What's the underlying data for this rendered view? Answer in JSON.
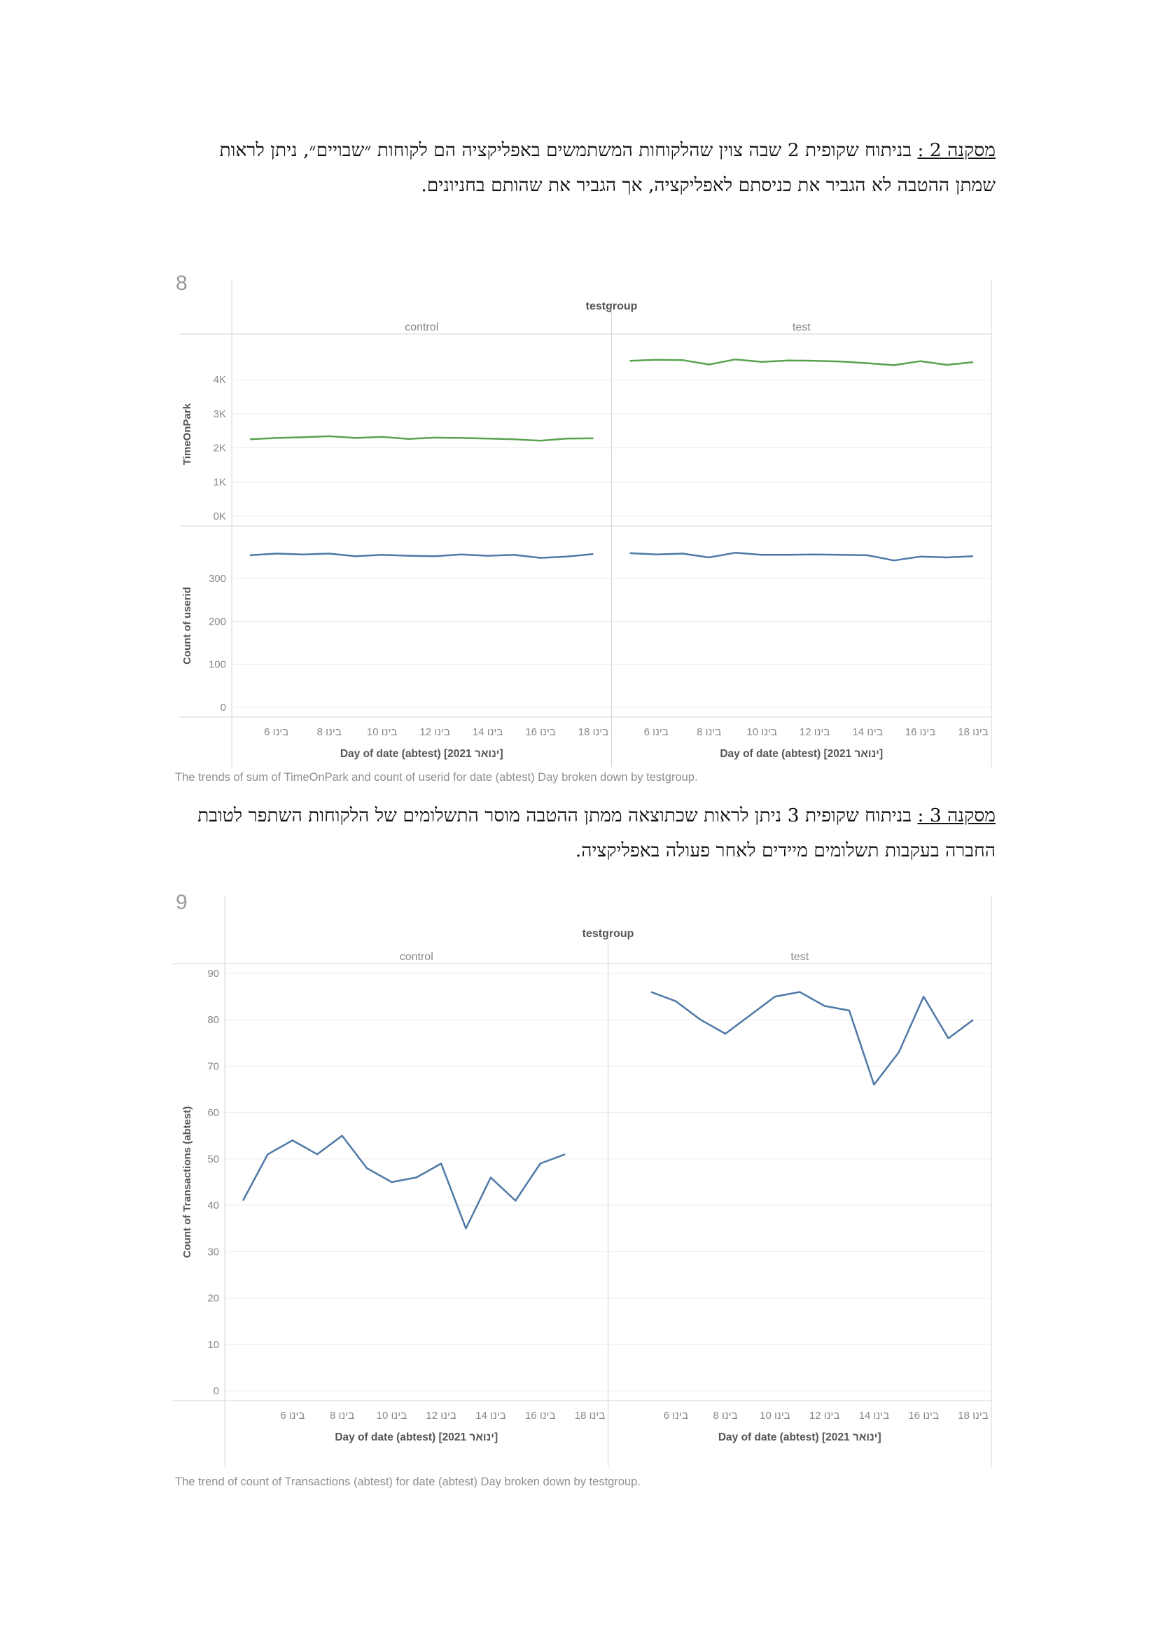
{
  "paragraphs": [
    {
      "label": "מסקנה 2 :",
      "text": " בניתוח שקופית 2 שבה צוין שהלקוחות המשתמשים באפליקציה הם לקוחות ״שבויים״, ניתן לראות שמתן ההטבה לא הגביר את כניסתם לאפליקציה, אך הגביר את שהותם בחניונים."
    },
    {
      "label": "מסקנה 3 :",
      "text": " בניתוח שקופית 3 ניתן לראות שכתוצאה ממתן ההטבה מוסר התשלומים של הלקוחות השתפר לטובת החברה בעקבות תשלומים מיידים לאחר פעולה באפליקציה."
    }
  ],
  "figures": [
    {
      "number": "8",
      "caption": "The trends of sum of TimeOnPark and count of userid for date (abtest) Day broken down by testgroup.",
      "header": "testgroup",
      "xlabel": "Day of date (abtest) [ינואר 2021]"
    },
    {
      "number": "9",
      "caption": "The trend of count of Transactions (abtest) for date (abtest) Day broken down by testgroup.",
      "header": "testgroup",
      "xlabel": "Day of date (abtest) [ינואר 2021]"
    }
  ],
  "chart_data": [
    {
      "type": "line",
      "title": "",
      "column_header": "testgroup",
      "panels": [
        "control",
        "test"
      ],
      "x": [
        5,
        6,
        7,
        8,
        9,
        10,
        11,
        12,
        13,
        14,
        15,
        16,
        17,
        18
      ],
      "x_tick_values": [
        6,
        8,
        10,
        12,
        14,
        16,
        18
      ],
      "x_tick_labels": [
        "6 בינו",
        "8 בינו",
        "10 בינו",
        "12 בינו",
        "14 בינו",
        "16 בינו",
        "18 בינו"
      ],
      "xlabel": "Day of date (abtest) [ינואר 2021]",
      "rows": [
        {
          "ylabel": "TimeOnPark",
          "ylim": [
            0,
            4800
          ],
          "yticks": [
            0,
            1000,
            2000,
            3000,
            4000
          ],
          "ytick_labels": [
            "0K",
            "1K",
            "2K",
            "3K",
            "4K"
          ],
          "color": "#59a14f",
          "series": [
            {
              "panel": "control",
              "values": [
                2250,
                2290,
                2310,
                2340,
                2290,
                2320,
                2260,
                2300,
                2290,
                2270,
                2250,
                2210,
                2270,
                2280
              ]
            },
            {
              "panel": "test",
              "values": [
                4550,
                4580,
                4570,
                4440,
                4590,
                4520,
                4560,
                4550,
                4530,
                4480,
                4420,
                4540,
                4430,
                4510
              ]
            }
          ]
        },
        {
          "ylabel": "Count of userid",
          "ylim": [
            0,
            380
          ],
          "yticks": [
            0,
            100,
            200,
            300
          ],
          "ytick_labels": [
            "0",
            "100",
            "200",
            "300"
          ],
          "color": "#4e79a7",
          "series": [
            {
              "panel": "control",
              "values": [
                354,
                358,
                356,
                358,
                352,
                355,
                353,
                352,
                356,
                353,
                355,
                348,
                351,
                357
              ]
            },
            {
              "panel": "test",
              "values": [
                359,
                356,
                358,
                349,
                360,
                355,
                355,
                356,
                355,
                354,
                342,
                351,
                349,
                352
              ]
            }
          ]
        }
      ]
    },
    {
      "type": "line",
      "title": "",
      "column_header": "testgroup",
      "panels": [
        "control",
        "test"
      ],
      "x": [
        4,
        5,
        6,
        7,
        8,
        9,
        10,
        11,
        12,
        13,
        14,
        15,
        16,
        17,
        18
      ],
      "x_tick_values": [
        6,
        8,
        10,
        12,
        14,
        16,
        18
      ],
      "x_tick_labels": [
        "6 בינו",
        "8 בינו",
        "10 בינו",
        "12 בינו",
        "14 בינו",
        "16 בינו",
        "18 בינו"
      ],
      "xlabel": "Day of date (abtest) [ינואר 2021]",
      "rows": [
        {
          "ylabel": "Count of Transactions (abtest)",
          "ylim": [
            0,
            90
          ],
          "yticks": [
            0,
            10,
            20,
            30,
            40,
            50,
            60,
            70,
            80,
            90
          ],
          "ytick_labels": [
            "0",
            "10",
            "20",
            "30",
            "40",
            "50",
            "60",
            "70",
            "80",
            "90"
          ],
          "color": "#4e79a7",
          "series": [
            {
              "panel": "control",
              "values": [
                41,
                51,
                54,
                51,
                55,
                48,
                45,
                46,
                49,
                35,
                46,
                41,
                49,
                51,
                null
              ]
            },
            {
              "panel": "test",
              "values": [
                null,
                86,
                84,
                80,
                77,
                81,
                85,
                86,
                83,
                82,
                66,
                73,
                85,
                76,
                80
              ]
            }
          ]
        }
      ]
    }
  ]
}
